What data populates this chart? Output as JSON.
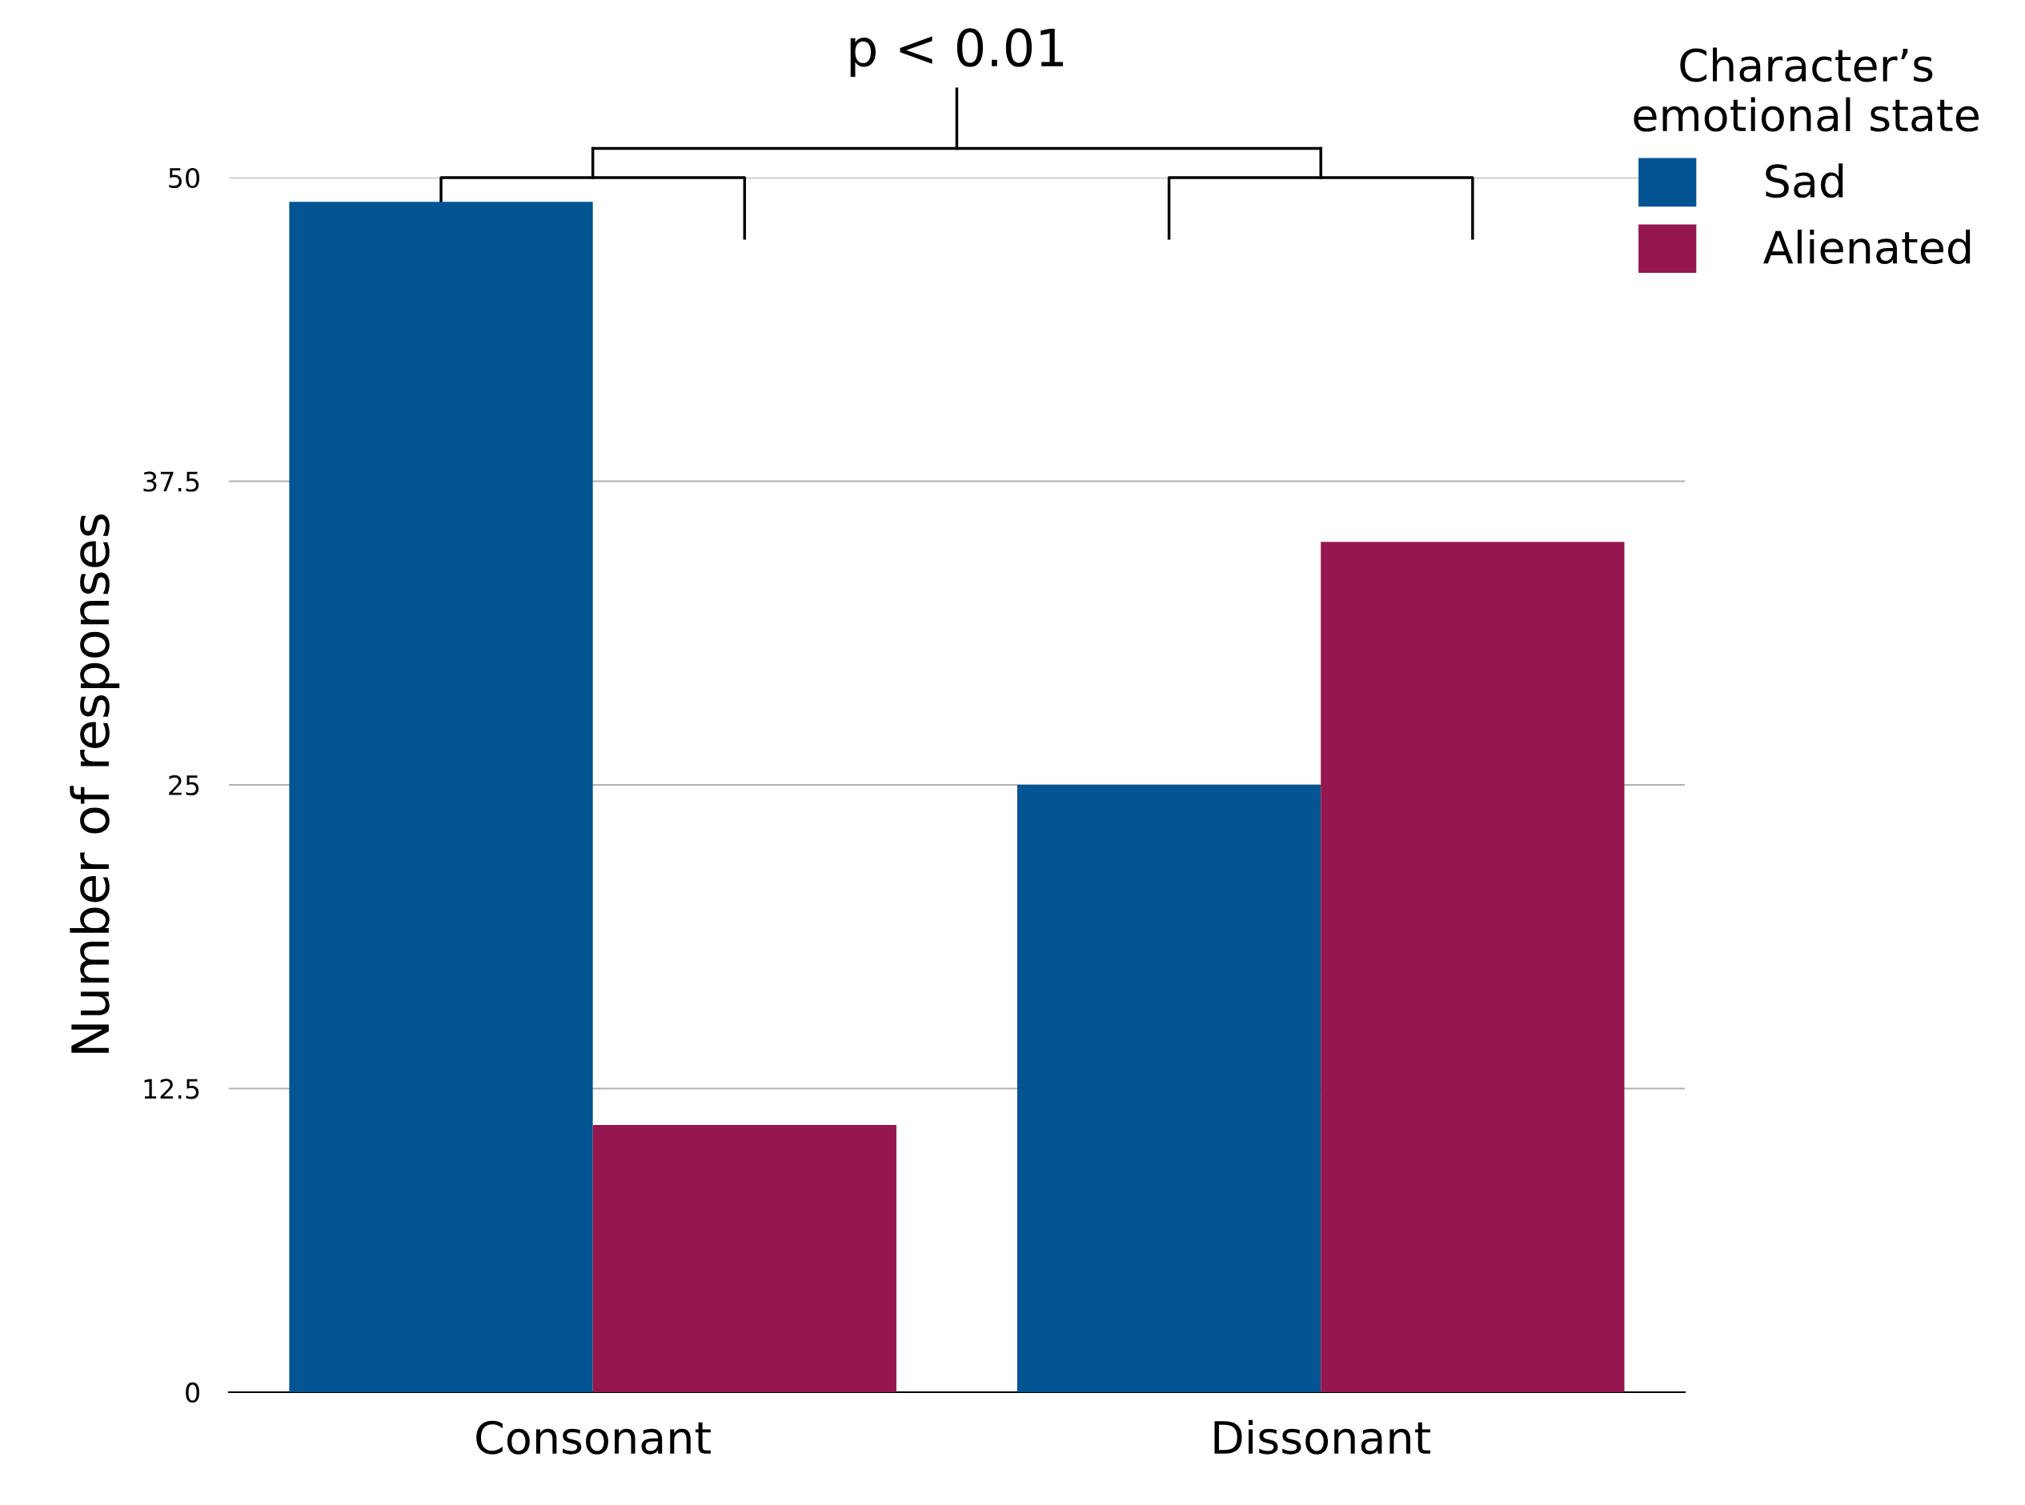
{
  "chart_data": {
    "type": "bar",
    "categories": [
      "Consonant",
      "Dissonant"
    ],
    "series": [
      {
        "name": "Sad",
        "color": "#035493",
        "values": [
          49,
          25
        ]
      },
      {
        "name": "Alienated",
        "color": "#951750",
        "values": [
          11,
          35
        ]
      }
    ],
    "ylabel": "Number of responses",
    "legend_title": "Character’s\nemotional state",
    "annotations": [
      "p < 0.01"
    ],
    "ylim": [
      0,
      50
    ],
    "yticks": [
      0,
      12.5,
      25,
      37.5,
      50
    ],
    "grid": "y",
    "legend": "top right"
  }
}
